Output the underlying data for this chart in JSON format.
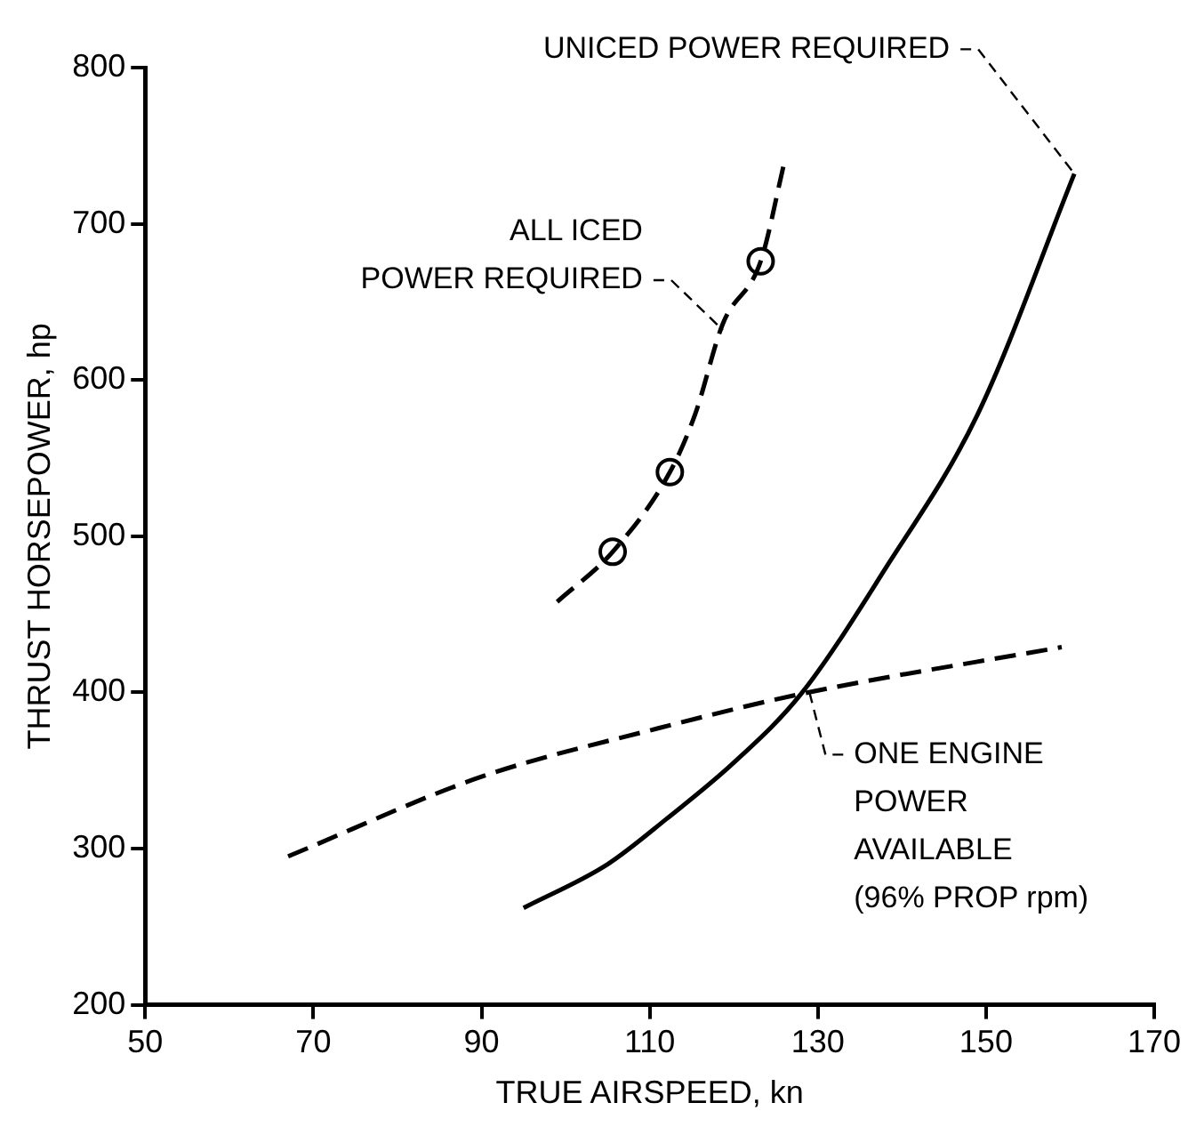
{
  "chart_data": {
    "type": "line",
    "xlabel": "TRUE AIRSPEED, kn",
    "ylabel": "THRUST HORSEPOWER, hp",
    "xlim": [
      50,
      170
    ],
    "xticks": [
      50,
      70,
      90,
      110,
      130,
      150,
      170
    ],
    "ylim": [
      200,
      800
    ],
    "yticks": [
      200,
      300,
      400,
      500,
      600,
      700,
      800
    ],
    "grid": false,
    "legend": false,
    "series": [
      {
        "color": "#000000",
        "line_style": "solid",
        "marker": "none",
        "x": [
          95,
          105,
          112,
          120,
          128,
          138,
          149,
          160.5
        ],
        "values": [
          262,
          290,
          319,
          355,
          399,
          479,
          578,
          732
        ]
      },
      {
        "color": "#000000",
        "line_style": "dashed",
        "marker": "none",
        "x": [
          99,
          105.6,
          112.4,
          115.4,
          118.7,
          123.2,
          126
        ],
        "values": [
          458,
          490,
          541,
          578,
          636,
          676,
          739
        ]
      },
      {
        "type": "scatter",
        "color": "#000000",
        "marker": "circle",
        "x": [
          105.6,
          112.4,
          123.2
        ],
        "values": [
          490,
          541,
          676
        ]
      },
      {
        "color": "#000000",
        "line_style": "dashed",
        "marker": "none",
        "x": [
          67,
          90,
          111,
          128,
          159
        ],
        "values": [
          295,
          346,
          377,
          399,
          429
        ]
      }
    ],
    "annotations": [
      {
        "text": "UNICED POWER REQUIRED",
        "x": 160.5,
        "y": 732
      },
      {
        "text": "ALL ICED\nPOWER REQUIRED",
        "x": 118.7,
        "y": 632
      },
      {
        "text": "ONE ENGINE\nPOWER\nAVAILABLE\n(96% PROP rpm)",
        "x": 129,
        "y": 400
      }
    ]
  }
}
